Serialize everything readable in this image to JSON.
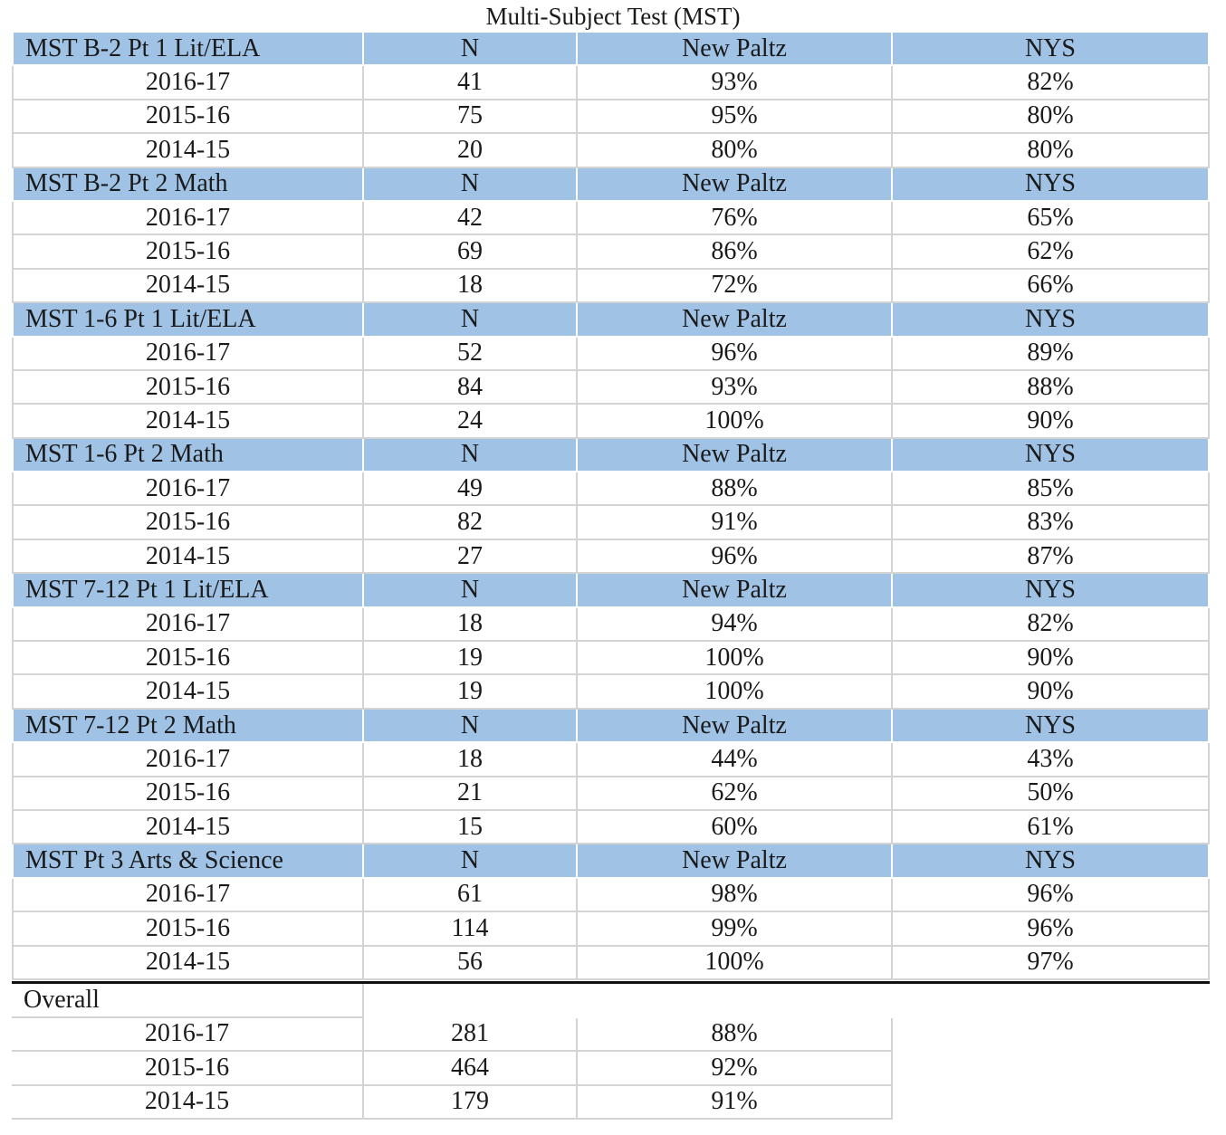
{
  "title": "Multi-Subject Test (MST)",
  "columns": {
    "n": "N",
    "college": "New Paltz",
    "state": "NYS"
  },
  "sections": [
    {
      "name": "MST B-2 Pt 1 Lit/ELA",
      "rows": [
        {
          "year": "2016-17",
          "n": "41",
          "college": "93%",
          "state": "82%"
        },
        {
          "year": "2015-16",
          "n": "75",
          "college": "95%",
          "state": "80%"
        },
        {
          "year": "2014-15",
          "n": "20",
          "college": "80%",
          "state": "80%"
        }
      ]
    },
    {
      "name": "MST B-2 Pt 2 Math",
      "rows": [
        {
          "year": "2016-17",
          "n": "42",
          "college": "76%",
          "state": "65%"
        },
        {
          "year": "2015-16",
          "n": "69",
          "college": "86%",
          "state": "62%"
        },
        {
          "year": "2014-15",
          "n": "18",
          "college": "72%",
          "state": "66%"
        }
      ]
    },
    {
      "name": "MST 1-6 Pt 1 Lit/ELA",
      "rows": [
        {
          "year": "2016-17",
          "n": "52",
          "college": "96%",
          "state": "89%"
        },
        {
          "year": "2015-16",
          "n": "84",
          "college": "93%",
          "state": "88%"
        },
        {
          "year": "2014-15",
          "n": "24",
          "college": "100%",
          "state": "90%"
        }
      ]
    },
    {
      "name": "MST 1-6 Pt 2 Math",
      "rows": [
        {
          "year": "2016-17",
          "n": "49",
          "college": "88%",
          "state": "85%"
        },
        {
          "year": "2015-16",
          "n": "82",
          "college": "91%",
          "state": "83%"
        },
        {
          "year": "2014-15",
          "n": "27",
          "college": "96%",
          "state": "87%"
        }
      ]
    },
    {
      "name": "MST 7-12 Pt 1 Lit/ELA",
      "rows": [
        {
          "year": "2016-17",
          "n": "18",
          "college": "94%",
          "state": "82%"
        },
        {
          "year": "2015-16",
          "n": "19",
          "college": "100%",
          "state": "90%"
        },
        {
          "year": "2014-15",
          "n": "19",
          "college": "100%",
          "state": "90%"
        }
      ]
    },
    {
      "name": "MST 7-12 Pt 2 Math",
      "rows": [
        {
          "year": "2016-17",
          "n": "18",
          "college": "44%",
          "state": "43%"
        },
        {
          "year": "2015-16",
          "n": "21",
          "college": "62%",
          "state": "50%"
        },
        {
          "year": "2014-15",
          "n": "15",
          "college": "60%",
          "state": "61%"
        }
      ]
    },
    {
      "name": "MST Pt 3 Arts & Science",
      "rows": [
        {
          "year": "2016-17",
          "n": "61",
          "college": "98%",
          "state": "96%"
        },
        {
          "year": "2015-16",
          "n": "114",
          "college": "99%",
          "state": "96%"
        },
        {
          "year": "2014-15",
          "n": "56",
          "college": "100%",
          "state": "97%"
        }
      ]
    }
  ],
  "overall": {
    "label": "Overall",
    "rows": [
      {
        "year": "2016-17",
        "n": "281",
        "college": "88%"
      },
      {
        "year": "2015-16",
        "n": "464",
        "college": "92%"
      },
      {
        "year": "2014-15",
        "n": "179",
        "college": "91%"
      }
    ]
  }
}
